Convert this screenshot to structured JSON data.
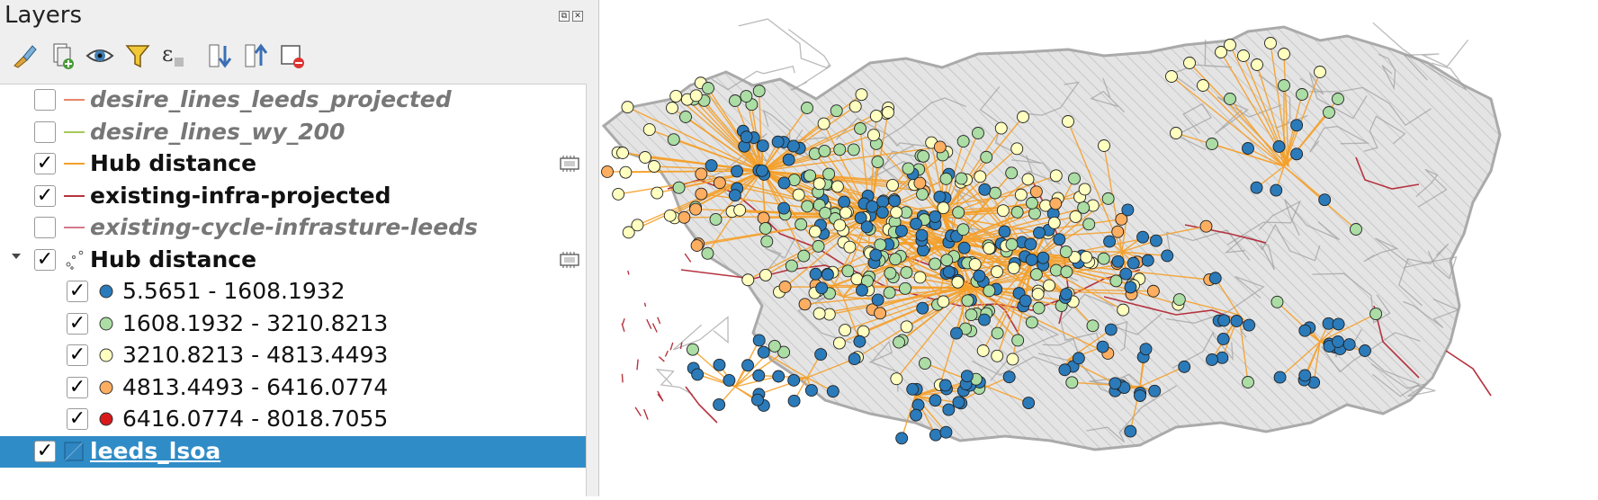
{
  "panel": {
    "title": "Layers",
    "dock_buttons": [
      "⧉",
      "✕"
    ],
    "toolbar": [
      {
        "name": "style-manager-icon"
      },
      {
        "name": "add-group-icon"
      },
      {
        "name": "manage-visibility-icon"
      },
      {
        "name": "filter-legend-icon"
      },
      {
        "name": "filter-expression-icon"
      },
      {
        "name": "expand-all-icon"
      },
      {
        "name": "collapse-all-icon"
      },
      {
        "name": "remove-layer-icon"
      }
    ]
  },
  "layers": [
    {
      "label": "desire_lines_leeds_projected",
      "checked": false,
      "state": "off",
      "symbol": "line",
      "color": "#e8866a"
    },
    {
      "label": "desire_lines_wy_200",
      "checked": false,
      "state": "off",
      "symbol": "line",
      "color": "#a6c85c"
    },
    {
      "label": "Hub distance",
      "checked": true,
      "state": "on",
      "symbol": "line",
      "color": "#f5a02a",
      "memory": true
    },
    {
      "label": "existing-infra-projected",
      "checked": true,
      "state": "on",
      "symbol": "line",
      "color": "#b5333f"
    },
    {
      "label": "existing-cycle-infrasture-leeds",
      "checked": false,
      "state": "off",
      "symbol": "line",
      "color": "#d6798c"
    },
    {
      "label": "Hub distance",
      "checked": true,
      "state": "on",
      "symbol": "points",
      "expanded": true,
      "memory": true
    },
    {
      "label": "5.5651 - 1608.1932",
      "checked": true,
      "state": "cls",
      "symbol": "dot",
      "color": "#2b7bba"
    },
    {
      "label": "1608.1932 - 3210.8213",
      "checked": true,
      "state": "cls",
      "symbol": "dot",
      "color": "#abdda4"
    },
    {
      "label": "3210.8213 - 4813.4493",
      "checked": true,
      "state": "cls",
      "symbol": "dot",
      "color": "#ffffbf"
    },
    {
      "label": "4813.4493 - 6416.0774",
      "checked": true,
      "state": "cls",
      "symbol": "dot",
      "color": "#fdae61"
    },
    {
      "label": "6416.0774 - 8018.7055",
      "checked": true,
      "state": "cls",
      "symbol": "dot",
      "color": "#d7191c"
    },
    {
      "label": "leeds_lsoa",
      "checked": true,
      "state": "sel",
      "symbol": "polygon",
      "selected": true
    }
  ],
  "map": {
    "colors": {
      "lsoa_fill": "#e4e4e4",
      "lsoa_border": "#9d9d9d",
      "hatch": "#b9b9b9",
      "hub_line": "#f5a02a",
      "infra": "#b5333f",
      "class1": "#2b7bba",
      "class2": "#abdda4",
      "class3": "#ffffbf",
      "class4": "#fdae61",
      "class5": "#d7191c"
    }
  }
}
